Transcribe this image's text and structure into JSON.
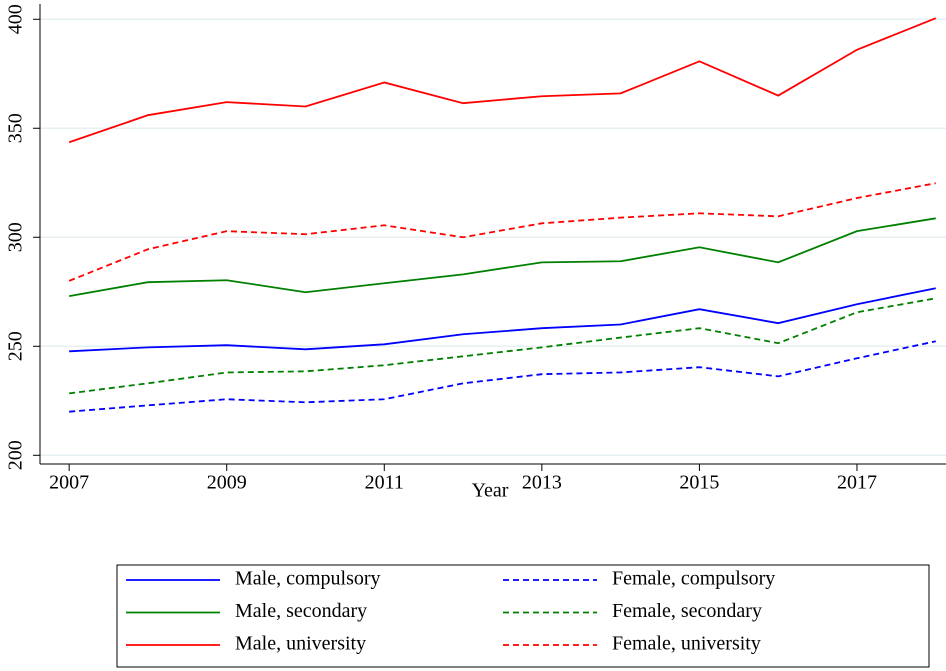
{
  "chart_data": {
    "type": "line",
    "x_label": "Year",
    "x": [
      2007,
      2008,
      2009,
      2010,
      2011,
      2012,
      2013,
      2014,
      2015,
      2016,
      2017,
      2018
    ],
    "xlim": [
      2006.63,
      2018.13
    ],
    "xticks": [
      2007,
      2009,
      2011,
      2013,
      2015,
      2017
    ],
    "ylim": [
      196,
      407
    ],
    "yticks": [
      200,
      250,
      300,
      350,
      400
    ],
    "grid": true,
    "legend": "bottom",
    "series": [
      {
        "name": "Male, compulsory",
        "color": "#0000ff",
        "style": "solid",
        "values": [
          247.7,
          249.5,
          250.5,
          248.6,
          250.9,
          255.5,
          258.3,
          260,
          267,
          260.6,
          269.3,
          276.6
        ]
      },
      {
        "name": "Female, compulsory",
        "color": "#0000ff",
        "style": "dashed",
        "values": [
          220,
          222.9,
          225.7,
          224.3,
          225.7,
          233,
          237.2,
          238,
          240.4,
          236.2,
          244.5,
          252.3
        ]
      },
      {
        "name": "Male, secondary",
        "color": "#008000",
        "style": "solid",
        "values": [
          273,
          279.4,
          280.3,
          274.8,
          278.9,
          283,
          288.5,
          289,
          295.4,
          288.5,
          302.8,
          308.7
        ]
      },
      {
        "name": "Female, secondary",
        "color": "#008000",
        "style": "dashed",
        "values": [
          228.4,
          233,
          238,
          238.5,
          241.3,
          245.4,
          249.5,
          254,
          258.3,
          251.4,
          265.6,
          272
        ]
      },
      {
        "name": "Male, university",
        "color": "#ff0000",
        "style": "solid",
        "values": [
          343.6,
          356,
          362,
          360,
          371,
          361.5,
          364.7,
          366,
          380.7,
          365,
          386,
          400.5
        ]
      },
      {
        "name": "Female, university",
        "color": "#ff0000",
        "style": "dashed",
        "values": [
          280,
          294.5,
          302.8,
          301.4,
          305.5,
          300,
          306.4,
          309,
          311,
          309.6,
          318,
          324.8
        ]
      }
    ]
  }
}
